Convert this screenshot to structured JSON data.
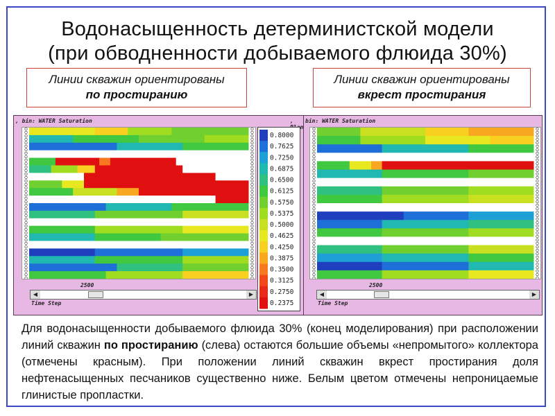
{
  "title_line1": "Водонасыщенность детерминистской модели",
  "title_line2": "(при обводненности добываемого флюида 30%)",
  "label_left": {
    "line1": "Линии скважин ориентированы",
    "line2": "по простиранию"
  },
  "label_right": {
    "line1": "Линии скважин ориентированы",
    "line2": "вкрест простирания"
  },
  "panel_left": {
    "header": ", bin: WATER Saturation",
    "header_right": ", Plane",
    "slider_value": "2500",
    "slider_label": "Time Step",
    "slider_position": 0.25
  },
  "panel_right": {
    "header": "bin: WATER Saturation",
    "slider_value": "2500",
    "slider_label": "Time Step",
    "slider_position": 0.25
  },
  "legend": {
    "values": [
      "0.8000",
      "0.7625",
      "0.7250",
      "0.6875",
      "0.6500",
      "0.6125",
      "0.5750",
      "0.5375",
      "0.5000",
      "0.4625",
      "0.4250",
      "0.3875",
      "0.3500",
      "0.3125",
      "0.2750",
      "0.2375"
    ],
    "colors": [
      "#1f3fbf",
      "#1f6fd8",
      "#1e9fd6",
      "#20b8b0",
      "#30c080",
      "#40c840",
      "#70d030",
      "#a0dc20",
      "#c8e020",
      "#e8e820",
      "#f8d020",
      "#f8a820",
      "#f87820",
      "#f04818",
      "#e82818",
      "#e01010"
    ]
  },
  "heatmap_left": {
    "rows": [
      {
        "segments": [
          [
            "#e8e820",
            0.3
          ],
          [
            "#f8d020",
            0.15
          ],
          [
            "#a0dc20",
            0.2
          ],
          [
            "#70d030",
            0.35
          ]
        ]
      },
      {
        "segments": [
          [
            "#20b8b0",
            0.2
          ],
          [
            "#40c840",
            0.3
          ],
          [
            "#70d030",
            0.3
          ],
          [
            "#a0dc20",
            0.2
          ]
        ]
      },
      {
        "segments": [
          [
            "#1f6fd8",
            0.4
          ],
          [
            "#20b8b0",
            0.3
          ],
          [
            "#40c840",
            0.3
          ]
        ]
      },
      {
        "segments": [
          [
            "#ffffff",
            1.0
          ]
        ]
      },
      {
        "segments": [
          [
            "#40c840",
            0.12
          ],
          [
            "#e01010",
            0.2
          ],
          [
            "#f87820",
            0.05
          ],
          [
            "#e01010",
            0.3
          ],
          [
            "#ffffff",
            0.33
          ]
        ]
      },
      {
        "segments": [
          [
            "#30c080",
            0.1
          ],
          [
            "#a0dc20",
            0.12
          ],
          [
            "#f8d020",
            0.08
          ],
          [
            "#e01010",
            0.4
          ],
          [
            "#ffffff",
            0.3
          ]
        ]
      },
      {
        "segments": [
          [
            "#ffffff",
            0.25
          ],
          [
            "#e01010",
            0.6
          ],
          [
            "#ffffff",
            0.15
          ]
        ]
      },
      {
        "segments": [
          [
            "#70d030",
            0.15
          ],
          [
            "#e8e820",
            0.1
          ],
          [
            "#e01010",
            0.75
          ]
        ]
      },
      {
        "segments": [
          [
            "#40c840",
            0.2
          ],
          [
            "#c8e020",
            0.2
          ],
          [
            "#f8a820",
            0.1
          ],
          [
            "#e01010",
            0.5
          ]
        ]
      },
      {
        "segments": [
          [
            "#ffffff",
            0.85
          ],
          [
            "#e01010",
            0.15
          ]
        ]
      },
      {
        "segments": [
          [
            "#1f6fd8",
            0.35
          ],
          [
            "#20b8b0",
            0.3
          ],
          [
            "#40c840",
            0.35
          ]
        ]
      },
      {
        "segments": [
          [
            "#30c080",
            0.3
          ],
          [
            "#70d030",
            0.4
          ],
          [
            "#c8e020",
            0.3
          ]
        ]
      },
      {
        "segments": [
          [
            "#ffffff",
            1.0
          ]
        ]
      },
      {
        "segments": [
          [
            "#40c840",
            0.3
          ],
          [
            "#a0dc20",
            0.4
          ],
          [
            "#e8e820",
            0.3
          ]
        ]
      },
      {
        "segments": [
          [
            "#20b8b0",
            0.3
          ],
          [
            "#40c840",
            0.3
          ],
          [
            "#70d030",
            0.4
          ]
        ]
      },
      {
        "segments": [
          [
            "#ffffff",
            1.0
          ]
        ]
      },
      {
        "segments": [
          [
            "#1f3fbf",
            0.3
          ],
          [
            "#1f6fd8",
            0.4
          ],
          [
            "#1e9fd6",
            0.3
          ]
        ]
      },
      {
        "segments": [
          [
            "#20b8b0",
            0.3
          ],
          [
            "#40c840",
            0.4
          ],
          [
            "#a0dc20",
            0.3
          ]
        ]
      },
      {
        "segments": [
          [
            "#1f6fd8",
            0.4
          ],
          [
            "#30c080",
            0.3
          ],
          [
            "#70d030",
            0.3
          ]
        ]
      },
      {
        "segments": [
          [
            "#40c840",
            0.35
          ],
          [
            "#a0dc20",
            0.35
          ],
          [
            "#f8d020",
            0.3
          ]
        ]
      }
    ]
  },
  "heatmap_right": {
    "rows": [
      {
        "segments": [
          [
            "#70d030",
            0.2
          ],
          [
            "#c8e020",
            0.3
          ],
          [
            "#f8d020",
            0.2
          ],
          [
            "#f8a820",
            0.3
          ]
        ]
      },
      {
        "segments": [
          [
            "#40c840",
            0.2
          ],
          [
            "#a0dc20",
            0.3
          ],
          [
            "#e8e820",
            0.3
          ],
          [
            "#f8d020",
            0.2
          ]
        ]
      },
      {
        "segments": [
          [
            "#1f6fd8",
            0.3
          ],
          [
            "#20b8b0",
            0.4
          ],
          [
            "#40c840",
            0.3
          ]
        ]
      },
      {
        "segments": [
          [
            "#ffffff",
            1.0
          ]
        ]
      },
      {
        "segments": [
          [
            "#40c840",
            0.15
          ],
          [
            "#e8e820",
            0.1
          ],
          [
            "#f8a820",
            0.05
          ],
          [
            "#e01010",
            0.7
          ]
        ]
      },
      {
        "segments": [
          [
            "#20b8b0",
            0.3
          ],
          [
            "#40c840",
            0.4
          ],
          [
            "#70d030",
            0.3
          ]
        ]
      },
      {
        "segments": [
          [
            "#ffffff",
            1.0
          ]
        ]
      },
      {
        "segments": [
          [
            "#30c080",
            0.3
          ],
          [
            "#70d030",
            0.4
          ],
          [
            "#a0dc20",
            0.3
          ]
        ]
      },
      {
        "segments": [
          [
            "#40c840",
            0.3
          ],
          [
            "#a0dc20",
            0.4
          ],
          [
            "#c8e020",
            0.3
          ]
        ]
      },
      {
        "segments": [
          [
            "#ffffff",
            1.0
          ]
        ]
      },
      {
        "segments": [
          [
            "#1f3fbf",
            0.4
          ],
          [
            "#1f6fd8",
            0.3
          ],
          [
            "#1e9fd6",
            0.3
          ]
        ]
      },
      {
        "segments": [
          [
            "#1f6fd8",
            0.3
          ],
          [
            "#20b8b0",
            0.4
          ],
          [
            "#30c080",
            0.3
          ]
        ]
      },
      {
        "segments": [
          [
            "#40c840",
            0.3
          ],
          [
            "#70d030",
            0.4
          ],
          [
            "#a0dc20",
            0.3
          ]
        ]
      },
      {
        "segments": [
          [
            "#ffffff",
            1.0
          ]
        ]
      },
      {
        "segments": [
          [
            "#30c080",
            0.3
          ],
          [
            "#70d030",
            0.4
          ],
          [
            "#c8e020",
            0.3
          ]
        ]
      },
      {
        "segments": [
          [
            "#1e9fd6",
            0.3
          ],
          [
            "#20b8b0",
            0.4
          ],
          [
            "#40c840",
            0.3
          ]
        ]
      },
      {
        "segments": [
          [
            "#1f3fbf",
            0.3
          ],
          [
            "#1f6fd8",
            0.4
          ],
          [
            "#20b8b0",
            0.3
          ]
        ]
      },
      {
        "segments": [
          [
            "#40c840",
            0.3
          ],
          [
            "#a0dc20",
            0.4
          ],
          [
            "#e8e820",
            0.3
          ]
        ]
      }
    ]
  },
  "description": {
    "part1": "Для водонасыщенности добываемого флюида 30% (конец моделирования) при расположении линий скважин ",
    "bold": "по простиранию",
    "part2": " (слева) остаются большие объемы «непромытого» коллектора (отмечены красным). При положении линий скважин вкрест простирания доля нефтенасыщенных песчаников существенно ниже. Белым цветом отмечены непроницаемые глинистые пропластки."
  }
}
